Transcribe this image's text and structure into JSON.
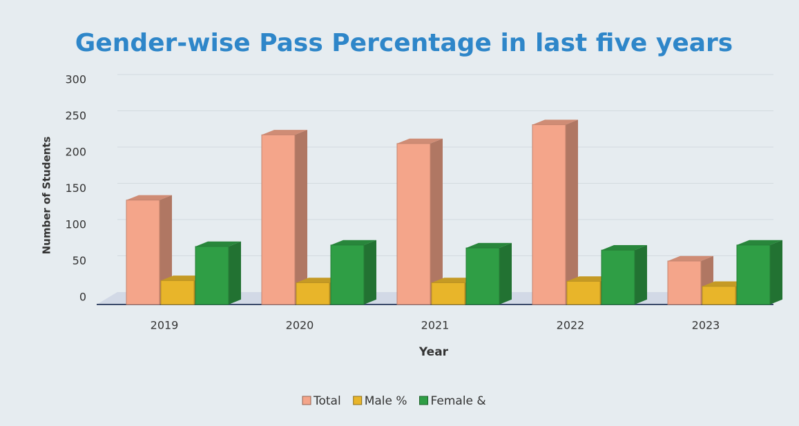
{
  "chart_data": {
    "type": "bar",
    "title": "Gender-wise Pass Percentage in last five years",
    "x_label": "Year",
    "y_label": "Number of Students",
    "categories": [
      "2019",
      "2020",
      "2021",
      "2022",
      "2023"
    ],
    "series": [
      {
        "name": "Total",
        "color": "#f4a58a",
        "values": [
          144,
          234,
          222,
          248,
          60
        ]
      },
      {
        "name": "Male %",
        "color": "#e8b52a",
        "values": [
          33,
          30,
          30,
          32,
          25
        ]
      },
      {
        "name": "Female &",
        "color": "#2f9e45",
        "values": [
          80,
          82,
          78,
          75,
          82
        ]
      }
    ],
    "ylim": [
      0,
      300
    ],
    "yticks": [
      0,
      50,
      100,
      150,
      200,
      250,
      300
    ],
    "grid": true,
    "legend": "bottom"
  }
}
